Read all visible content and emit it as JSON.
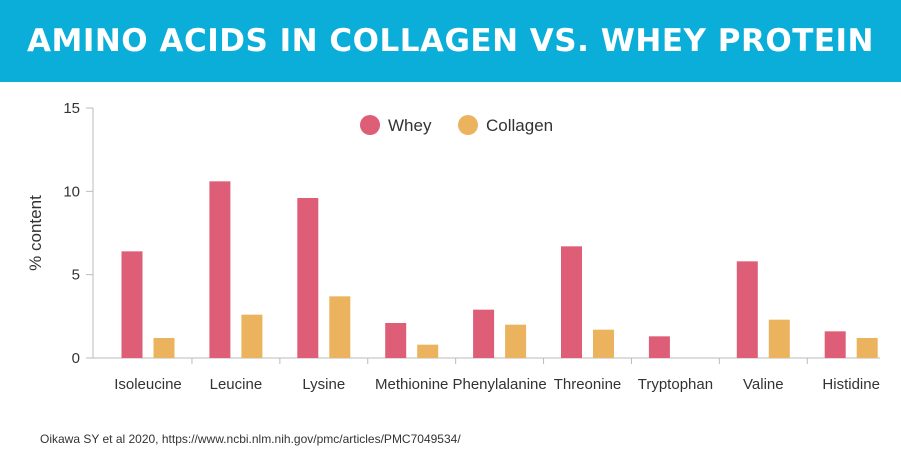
{
  "header": {
    "title": "AMINO ACIDS IN COLLAGEN VS. WHEY PROTEIN"
  },
  "chart_data": {
    "type": "bar",
    "title": "AMINO ACIDS IN COLLAGEN VS. WHEY PROTEIN",
    "xlabel": "",
    "ylabel": "% content",
    "ylim": [
      0,
      15
    ],
    "yticks": [
      0,
      5,
      10,
      15
    ],
    "grid": false,
    "legend_position": "top-center",
    "categories": [
      "Isoleucine",
      "Leucine",
      "Lysine",
      "Methionine",
      "Phenylalanine",
      "Threonine",
      "Tryptophan",
      "Valine",
      "Histidine"
    ],
    "series": [
      {
        "name": "Whey",
        "color": "#de5e78",
        "values": [
          6.4,
          10.6,
          9.6,
          2.1,
          2.9,
          6.7,
          1.3,
          5.8,
          1.6
        ]
      },
      {
        "name": "Collagen",
        "color": "#ecb35f",
        "values": [
          1.2,
          2.6,
          3.7,
          0.8,
          2.0,
          1.7,
          0,
          2.3,
          1.2
        ]
      }
    ]
  },
  "footer": {
    "source": "Oikawa SY et al 2020, https://www.ncbi.nlm.nih.gov/pmc/articles/PMC7049534/"
  }
}
